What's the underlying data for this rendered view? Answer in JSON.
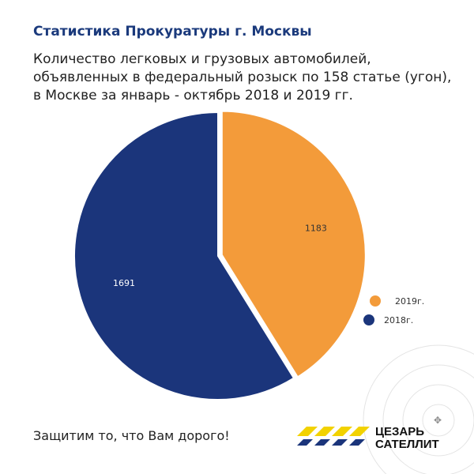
{
  "header": {
    "title": "Статистика Прокуратуры г. Москвы",
    "subtitle_lines": [
      "Количество легковых и грузовых автомобилей,",
      "объявленных в федеральный розыск по 158 статье (угон),",
      "в Москве за январь - октябрь 2018 и 2019 гг."
    ]
  },
  "chart_data": {
    "type": "pie",
    "title": "Количество легковых и грузовых автомобилей, объявленных в федеральный розыск по 158 статье (угон), в Москве за январь - октябрь 2018 и 2019 гг.",
    "categories": [
      "2019г.",
      "2018г."
    ],
    "values": [
      1183,
      1691
    ],
    "data_labels": [
      "1183",
      "1691"
    ],
    "colors": [
      "#f39b3a",
      "#1b357b"
    ],
    "legend": "right"
  },
  "footer": {
    "slogan": "Защитим то, что Вам дорого!",
    "logo_line1": "ЦЕЗАРЬ",
    "logo_line2": "САТЕЛЛИТ"
  }
}
